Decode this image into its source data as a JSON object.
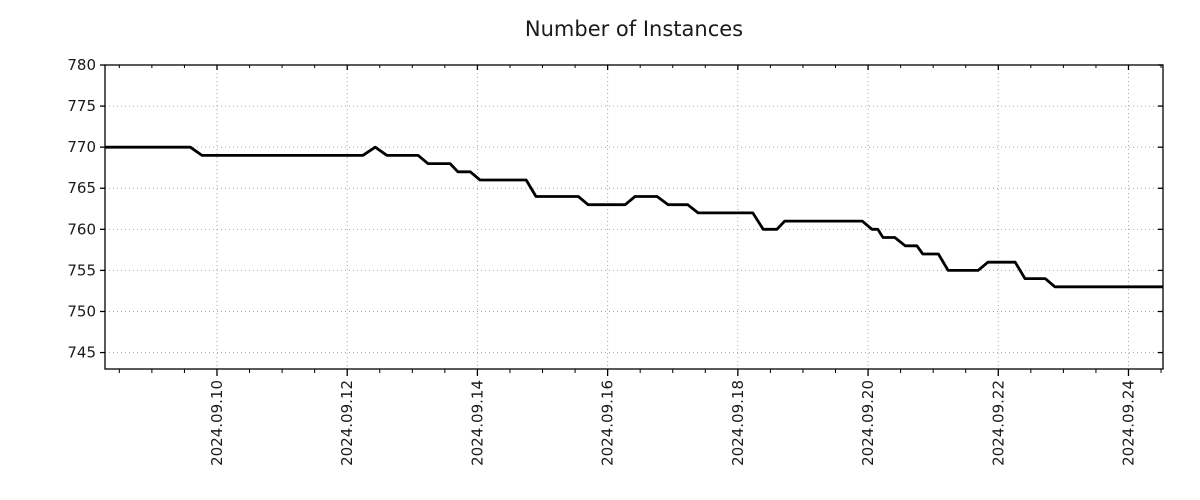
{
  "chart_data": {
    "type": "line",
    "title": "Number of Instances",
    "xlabel": "",
    "ylabel": "",
    "legend": "none",
    "grid": "dotted gray lines at major ticks, boxed frame, ticks on all four sides",
    "x_unit": "days since 2024-09-10 00:00",
    "xlim": [
      -1.72,
      14.53
    ],
    "ylim": [
      743,
      780
    ],
    "x_minor_tick_step_days": 0.5,
    "colors": {
      "line": "#000000",
      "grid": "#a6a6a6",
      "frame": "#000000",
      "text": "#1a1a1a"
    },
    "y_ticks": [
      {
        "value": 780,
        "label": "780"
      },
      {
        "value": 775,
        "label": "775"
      },
      {
        "value": 770,
        "label": "770"
      },
      {
        "value": 765,
        "label": "765"
      },
      {
        "value": 760,
        "label": "760"
      },
      {
        "value": 755,
        "label": "755"
      },
      {
        "value": 750,
        "label": "750"
      },
      {
        "value": 745,
        "label": "745"
      }
    ],
    "x_ticks": [
      {
        "d": 0,
        "label": "2024.09.10"
      },
      {
        "d": 2,
        "label": "2024.09.12"
      },
      {
        "d": 4,
        "label": "2024.09.14"
      },
      {
        "d": 6,
        "label": "2024.09.16"
      },
      {
        "d": 8,
        "label": "2024.09.18"
      },
      {
        "d": 10,
        "label": "2024.09.20"
      },
      {
        "d": 12,
        "label": "2024.09.22"
      },
      {
        "d": 14,
        "label": "2024.09.24"
      }
    ],
    "points": [
      {
        "date": "2024-09-08 07:00",
        "d": -1.72,
        "v": 770
      },
      {
        "date": "2024-09-09 14:00",
        "d": -0.41,
        "v": 770
      },
      {
        "date": "2024-09-09 18:30",
        "d": -0.23,
        "v": 769
      },
      {
        "date": "2024-09-12 06:00",
        "d": 2.24,
        "v": 769
      },
      {
        "date": "2024-09-12 10:00",
        "d": 2.43,
        "v": 770
      },
      {
        "date": "2024-09-12 14:30",
        "d": 2.61,
        "v": 769
      },
      {
        "date": "2024-09-13 02:00",
        "d": 3.09,
        "v": 769
      },
      {
        "date": "2024-09-13 06:00",
        "d": 3.24,
        "v": 768
      },
      {
        "date": "2024-09-13 14:00",
        "d": 3.58,
        "v": 768
      },
      {
        "date": "2024-09-13 17:00",
        "d": 3.7,
        "v": 767
      },
      {
        "date": "2024-09-13 21:30",
        "d": 3.89,
        "v": 767
      },
      {
        "date": "2024-09-14 01:00",
        "d": 4.04,
        "v": 766
      },
      {
        "date": "2024-09-14 18:00",
        "d": 4.75,
        "v": 766
      },
      {
        "date": "2024-09-14 21:30",
        "d": 4.9,
        "v": 764
      },
      {
        "date": "2024-09-15 13:00",
        "d": 5.55,
        "v": 764
      },
      {
        "date": "2024-09-15 17:00",
        "d": 5.7,
        "v": 763
      },
      {
        "date": "2024-09-16 06:30",
        "d": 6.27,
        "v": 763
      },
      {
        "date": "2024-09-16 10:00",
        "d": 6.42,
        "v": 764
      },
      {
        "date": "2024-09-16 18:00",
        "d": 6.76,
        "v": 764
      },
      {
        "date": "2024-09-16 22:30",
        "d": 6.93,
        "v": 763
      },
      {
        "date": "2024-09-17 05:30",
        "d": 7.23,
        "v": 763
      },
      {
        "date": "2024-09-17 09:30",
        "d": 7.39,
        "v": 762
      },
      {
        "date": "2024-09-18 05:30",
        "d": 8.23,
        "v": 762
      },
      {
        "date": "2024-09-18 09:30",
        "d": 8.39,
        "v": 760
      },
      {
        "date": "2024-09-18 14:30",
        "d": 8.6,
        "v": 760
      },
      {
        "date": "2024-09-18 17:30",
        "d": 8.72,
        "v": 761
      },
      {
        "date": "2024-09-19 22:00",
        "d": 9.91,
        "v": 761
      },
      {
        "date": "2024-09-20 01:30",
        "d": 10.06,
        "v": 760
      },
      {
        "date": "2024-09-20 03:30",
        "d": 10.15,
        "v": 760
      },
      {
        "date": "2024-09-20 05:30",
        "d": 10.23,
        "v": 759
      },
      {
        "date": "2024-09-20 10:00",
        "d": 10.41,
        "v": 759
      },
      {
        "date": "2024-09-20 13:30",
        "d": 10.57,
        "v": 758
      },
      {
        "date": "2024-09-20 18:00",
        "d": 10.75,
        "v": 758
      },
      {
        "date": "2024-09-20 20:00",
        "d": 10.84,
        "v": 757
      },
      {
        "date": "2024-09-21 02:00",
        "d": 11.08,
        "v": 757
      },
      {
        "date": "2024-09-21 05:30",
        "d": 11.23,
        "v": 755
      },
      {
        "date": "2024-09-21 16:30",
        "d": 11.69,
        "v": 755
      },
      {
        "date": "2024-09-21 20:00",
        "d": 11.84,
        "v": 756
      },
      {
        "date": "2024-09-22 06:00",
        "d": 12.26,
        "v": 756
      },
      {
        "date": "2024-09-22 10:00",
        "d": 12.41,
        "v": 754
      },
      {
        "date": "2024-09-22 17:30",
        "d": 12.72,
        "v": 754
      },
      {
        "date": "2024-09-22 21:00",
        "d": 12.87,
        "v": 753
      },
      {
        "date": "2024-09-24 12:45",
        "d": 14.53,
        "v": 753
      }
    ]
  }
}
